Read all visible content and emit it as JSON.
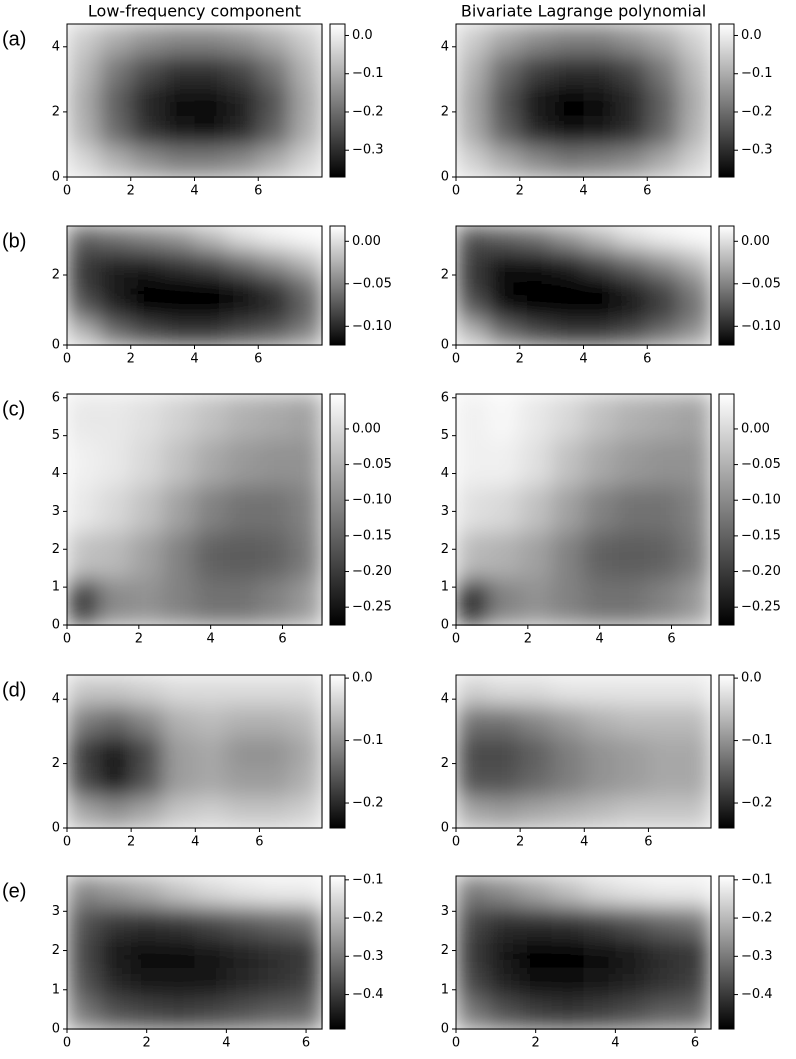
{
  "chart_data": [
    {
      "type": "heatmap",
      "panel_label": "(a)",
      "title": "Low-frequency component",
      "cmap": "gray",
      "xlim": [
        0,
        8
      ],
      "ylim": [
        0,
        4.7
      ],
      "xticks": [
        0,
        2,
        4,
        6
      ],
      "yticks": [
        0,
        2,
        4
      ],
      "clim": [
        -0.37,
        0.03
      ],
      "cticks": [
        {
          "value": 0,
          "label": "0.0"
        },
        {
          "value": -0.1,
          "label": "−0.1"
        },
        {
          "value": -0.2,
          "label": "−0.2"
        },
        {
          "value": -0.3,
          "label": "−0.3"
        }
      ],
      "z": [
        [
          -0.05,
          -0.1,
          -0.14,
          -0.16,
          -0.16,
          -0.14,
          -0.1,
          -0.05
        ],
        [
          -0.08,
          -0.18,
          -0.25,
          -0.29,
          -0.29,
          -0.26,
          -0.19,
          -0.09
        ],
        [
          -0.1,
          -0.22,
          -0.31,
          -0.35,
          -0.35,
          -0.32,
          -0.24,
          -0.11
        ],
        [
          -0.09,
          -0.2,
          -0.29,
          -0.34,
          -0.35,
          -0.31,
          -0.22,
          -0.1
        ],
        [
          -0.03,
          -0.09,
          -0.14,
          -0.17,
          -0.17,
          -0.15,
          -0.1,
          -0.04
        ]
      ]
    },
    {
      "type": "heatmap",
      "title": "Bivariate Lagrange polynomial",
      "cmap": "gray",
      "xlim": [
        0,
        8
      ],
      "ylim": [
        0,
        4.7
      ],
      "xticks": [
        0,
        2,
        4,
        6
      ],
      "yticks": [
        0,
        2,
        4
      ],
      "clim": [
        -0.37,
        0.03
      ],
      "cticks": [
        {
          "value": 0,
          "label": "0.0"
        },
        {
          "value": -0.1,
          "label": "−0.1"
        },
        {
          "value": -0.2,
          "label": "−0.2"
        },
        {
          "value": -0.3,
          "label": "−0.3"
        }
      ],
      "z": [
        [
          -0.05,
          -0.11,
          -0.15,
          -0.17,
          -0.17,
          -0.14,
          -0.1,
          -0.04
        ],
        [
          -0.09,
          -0.2,
          -0.27,
          -0.3,
          -0.3,
          -0.26,
          -0.18,
          -0.08
        ],
        [
          -0.11,
          -0.24,
          -0.33,
          -0.36,
          -0.35,
          -0.31,
          -0.22,
          -0.1
        ],
        [
          -0.1,
          -0.22,
          -0.31,
          -0.35,
          -0.34,
          -0.3,
          -0.21,
          -0.09
        ],
        [
          -0.04,
          -0.1,
          -0.15,
          -0.18,
          -0.17,
          -0.15,
          -0.1,
          -0.04
        ]
      ]
    },
    {
      "type": "heatmap",
      "panel_label": "(b)",
      "cmap": "gray",
      "xlim": [
        0,
        8
      ],
      "ylim": [
        0,
        3.4
      ],
      "xticks": [
        0,
        2,
        4,
        6
      ],
      "yticks": [
        0,
        2
      ],
      "clim": [
        -0.122,
        0.018
      ],
      "cticks": [
        {
          "value": 0,
          "label": "0.00"
        },
        {
          "value": -0.05,
          "label": "−0.05"
        },
        {
          "value": -0.1,
          "label": "−0.10"
        }
      ],
      "z": [
        [
          -0.07,
          -0.06,
          -0.05,
          -0.04,
          -0.02,
          0.0,
          0.01,
          0.015
        ],
        [
          -0.09,
          -0.1,
          -0.1,
          -0.09,
          -0.08,
          -0.06,
          -0.04,
          -0.02
        ],
        [
          -0.09,
          -0.11,
          -0.12,
          -0.12,
          -0.12,
          -0.11,
          -0.09,
          -0.06
        ],
        [
          -0.07,
          -0.1,
          -0.12,
          -0.12,
          -0.12,
          -0.11,
          -0.1,
          -0.07
        ],
        [
          -0.02,
          -0.06,
          -0.08,
          -0.09,
          -0.09,
          -0.08,
          -0.07,
          -0.05
        ]
      ]
    },
    {
      "type": "heatmap",
      "cmap": "gray",
      "xlim": [
        0,
        8
      ],
      "ylim": [
        0,
        3.4
      ],
      "xticks": [
        0,
        2,
        4,
        6
      ],
      "yticks": [
        0,
        2
      ],
      "clim": [
        -0.122,
        0.018
      ],
      "cticks": [
        {
          "value": 0,
          "label": "0.00"
        },
        {
          "value": -0.05,
          "label": "−0.05"
        },
        {
          "value": -0.1,
          "label": "−0.10"
        }
      ],
      "z": [
        [
          -0.08,
          -0.07,
          -0.06,
          -0.04,
          -0.02,
          0.0,
          0.01,
          0.015
        ],
        [
          -0.09,
          -0.11,
          -0.11,
          -0.1,
          -0.08,
          -0.06,
          -0.04,
          -0.02
        ],
        [
          -0.09,
          -0.12,
          -0.12,
          -0.12,
          -0.12,
          -0.1,
          -0.08,
          -0.05
        ],
        [
          -0.07,
          -0.11,
          -0.12,
          -0.12,
          -0.12,
          -0.11,
          -0.09,
          -0.06
        ],
        [
          -0.02,
          -0.06,
          -0.08,
          -0.09,
          -0.09,
          -0.08,
          -0.06,
          -0.04
        ]
      ]
    },
    {
      "type": "heatmap",
      "panel_label": "(c)",
      "cmap": "gray",
      "xlim": [
        0,
        7.1
      ],
      "ylim": [
        0,
        6.1
      ],
      "xticks": [
        0,
        2,
        4,
        6
      ],
      "yticks": [
        0,
        1,
        2,
        3,
        4,
        5,
        6
      ],
      "clim": [
        -0.275,
        0.049
      ],
      "cticks": [
        {
          "value": 0,
          "label": "0.00"
        },
        {
          "value": -0.05,
          "label": "−0.05"
        },
        {
          "value": -0.1,
          "label": "−0.10"
        },
        {
          "value": -0.15,
          "label": "−0.15"
        },
        {
          "value": -0.2,
          "label": "−0.20"
        },
        {
          "value": -0.25,
          "label": "−0.25"
        }
      ],
      "z": [
        [
          0.02,
          0.02,
          0.01,
          -0.01,
          -0.03,
          -0.05,
          -0.06,
          -0.07
        ],
        [
          0.03,
          0.02,
          0.0,
          -0.03,
          -0.06,
          -0.08,
          -0.09,
          -0.09
        ],
        [
          0.02,
          0.0,
          -0.03,
          -0.07,
          -0.11,
          -0.13,
          -0.13,
          -0.11
        ],
        [
          -0.03,
          -0.04,
          -0.07,
          -0.11,
          -0.15,
          -0.16,
          -0.15,
          -0.12
        ],
        [
          -0.2,
          -0.1,
          -0.09,
          -0.11,
          -0.13,
          -0.13,
          -0.11,
          -0.08
        ]
      ]
    },
    {
      "type": "heatmap",
      "cmap": "gray",
      "xlim": [
        0,
        7.1
      ],
      "ylim": [
        0,
        6.1
      ],
      "xticks": [
        0,
        2,
        4,
        6
      ],
      "yticks": [
        0,
        1,
        2,
        3,
        4,
        5,
        6
      ],
      "clim": [
        -0.275,
        0.049
      ],
      "cticks": [
        {
          "value": 0,
          "label": "0.00"
        },
        {
          "value": -0.05,
          "label": "−0.05"
        },
        {
          "value": -0.1,
          "label": "−0.10"
        },
        {
          "value": -0.15,
          "label": "−0.15"
        },
        {
          "value": -0.2,
          "label": "−0.20"
        },
        {
          "value": -0.25,
          "label": "−0.25"
        }
      ],
      "z": [
        [
          0.03,
          0.04,
          0.02,
          0.0,
          -0.03,
          -0.05,
          -0.06,
          -0.07
        ],
        [
          0.03,
          0.03,
          0.01,
          -0.03,
          -0.06,
          -0.08,
          -0.09,
          -0.09
        ],
        [
          0.01,
          0.0,
          -0.03,
          -0.07,
          -0.11,
          -0.13,
          -0.13,
          -0.11
        ],
        [
          -0.04,
          -0.05,
          -0.07,
          -0.11,
          -0.15,
          -0.16,
          -0.15,
          -0.12
        ],
        [
          -0.22,
          -0.11,
          -0.09,
          -0.11,
          -0.13,
          -0.13,
          -0.11,
          -0.08
        ]
      ]
    },
    {
      "type": "heatmap",
      "panel_label": "(d)",
      "cmap": "gray",
      "xlim": [
        0,
        7.95
      ],
      "ylim": [
        0,
        4.75
      ],
      "xticks": [
        0,
        2,
        4,
        6
      ],
      "yticks": [
        0,
        2,
        4
      ],
      "clim": [
        -0.24,
        0.005
      ],
      "cticks": [
        {
          "value": 0,
          "label": "0.0"
        },
        {
          "value": -0.1,
          "label": "−0.1"
        },
        {
          "value": -0.2,
          "label": "−0.2"
        }
      ],
      "z": [
        [
          -0.05,
          -0.05,
          -0.04,
          -0.03,
          -0.03,
          -0.03,
          -0.03,
          -0.03
        ],
        [
          -0.12,
          -0.14,
          -0.11,
          -0.07,
          -0.06,
          -0.07,
          -0.07,
          -0.06
        ],
        [
          -0.18,
          -0.22,
          -0.17,
          -0.09,
          -0.08,
          -0.1,
          -0.1,
          -0.08
        ],
        [
          -0.17,
          -0.22,
          -0.16,
          -0.09,
          -0.08,
          -0.09,
          -0.09,
          -0.07
        ],
        [
          -0.08,
          -0.1,
          -0.08,
          -0.05,
          -0.04,
          -0.05,
          -0.05,
          -0.04
        ]
      ]
    },
    {
      "type": "heatmap",
      "cmap": "gray",
      "xlim": [
        0,
        7.95
      ],
      "ylim": [
        0,
        4.75
      ],
      "xticks": [
        0,
        2,
        4,
        6
      ],
      "yticks": [
        0,
        2,
        4
      ],
      "clim": [
        -0.24,
        0.005
      ],
      "cticks": [
        {
          "value": 0,
          "label": "0.0"
        },
        {
          "value": -0.1,
          "label": "−0.1"
        },
        {
          "value": -0.2,
          "label": "−0.2"
        }
      ],
      "z": [
        [
          -0.04,
          -0.03,
          -0.03,
          -0.02,
          -0.02,
          -0.02,
          -0.02,
          -0.02
        ],
        [
          -0.13,
          -0.13,
          -0.11,
          -0.09,
          -0.07,
          -0.06,
          -0.06,
          -0.06
        ],
        [
          -0.17,
          -0.17,
          -0.15,
          -0.12,
          -0.1,
          -0.09,
          -0.08,
          -0.08
        ],
        [
          -0.16,
          -0.16,
          -0.14,
          -0.12,
          -0.1,
          -0.09,
          -0.08,
          -0.08
        ],
        [
          -0.08,
          -0.09,
          -0.08,
          -0.07,
          -0.06,
          -0.05,
          -0.05,
          -0.05
        ]
      ]
    },
    {
      "type": "heatmap",
      "panel_label": "(e)",
      "cmap": "gray",
      "xlim": [
        0,
        6.4
      ],
      "ylim": [
        0,
        3.9
      ],
      "xticks": [
        0,
        2,
        4,
        6
      ],
      "yticks": [
        0,
        1,
        2,
        3
      ],
      "clim": [
        -0.49,
        -0.09
      ],
      "cticks": [
        {
          "value": -0.1,
          "label": "−0.1"
        },
        {
          "value": -0.2,
          "label": "−0.2"
        },
        {
          "value": -0.3,
          "label": "−0.3"
        },
        {
          "value": -0.4,
          "label": "−0.4"
        }
      ],
      "z": [
        [
          -0.28,
          -0.25,
          -0.22,
          -0.18,
          -0.15,
          -0.13,
          -0.12,
          -0.12
        ],
        [
          -0.36,
          -0.4,
          -0.41,
          -0.4,
          -0.38,
          -0.35,
          -0.33,
          -0.31
        ],
        [
          -0.38,
          -0.45,
          -0.47,
          -0.47,
          -0.46,
          -0.44,
          -0.42,
          -0.4
        ],
        [
          -0.36,
          -0.43,
          -0.46,
          -0.46,
          -0.45,
          -0.43,
          -0.41,
          -0.39
        ],
        [
          -0.3,
          -0.36,
          -0.38,
          -0.39,
          -0.38,
          -0.36,
          -0.34,
          -0.33
        ]
      ]
    },
    {
      "type": "heatmap",
      "cmap": "gray",
      "xlim": [
        0,
        6.4
      ],
      "ylim": [
        0,
        3.9
      ],
      "xticks": [
        0,
        2,
        4,
        6
      ],
      "yticks": [
        0,
        1,
        2,
        3
      ],
      "clim": [
        -0.49,
        -0.09
      ],
      "cticks": [
        {
          "value": -0.1,
          "label": "−0.1"
        },
        {
          "value": -0.2,
          "label": "−0.2"
        },
        {
          "value": -0.3,
          "label": "−0.3"
        },
        {
          "value": -0.4,
          "label": "−0.4"
        }
      ],
      "z": [
        [
          -0.3,
          -0.27,
          -0.23,
          -0.19,
          -0.15,
          -0.13,
          -0.12,
          -0.12
        ],
        [
          -0.38,
          -0.42,
          -0.42,
          -0.41,
          -0.39,
          -0.36,
          -0.33,
          -0.31
        ],
        [
          -0.4,
          -0.46,
          -0.48,
          -0.48,
          -0.47,
          -0.45,
          -0.42,
          -0.4
        ],
        [
          -0.38,
          -0.44,
          -0.47,
          -0.47,
          -0.46,
          -0.44,
          -0.41,
          -0.39
        ],
        [
          -0.3,
          -0.36,
          -0.39,
          -0.4,
          -0.39,
          -0.37,
          -0.34,
          -0.33
        ]
      ]
    }
  ]
}
